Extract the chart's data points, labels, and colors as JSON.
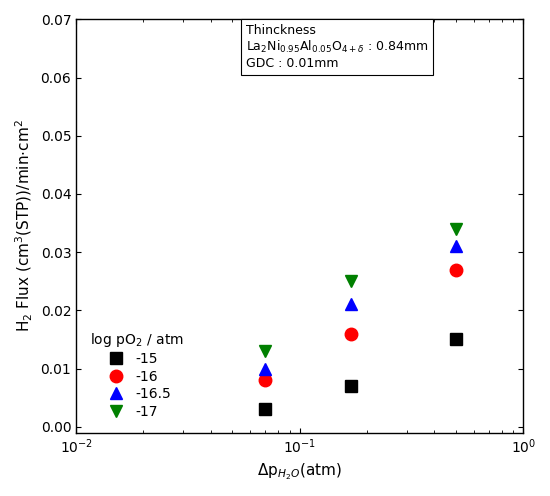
{
  "series": [
    {
      "label": "-15",
      "color": "black",
      "marker": "s",
      "x": [
        0.07,
        0.17,
        0.5
      ],
      "y": [
        0.003,
        0.007,
        0.015
      ]
    },
    {
      "label": "-16",
      "color": "red",
      "marker": "o",
      "x": [
        0.07,
        0.17,
        0.5
      ],
      "y": [
        0.008,
        0.016,
        0.027
      ]
    },
    {
      "label": "-16.5",
      "color": "blue",
      "marker": "^",
      "x": [
        0.07,
        0.17,
        0.5
      ],
      "y": [
        0.01,
        0.021,
        0.031
      ]
    },
    {
      "label": "-17",
      "color": "green",
      "marker": "v",
      "x": [
        0.07,
        0.17,
        0.5
      ],
      "y": [
        0.013,
        0.025,
        0.034
      ]
    }
  ],
  "xlim": [
    0.01,
    1.0
  ],
  "ylim": [
    -0.001,
    0.07
  ],
  "yticks": [
    0.0,
    0.01,
    0.02,
    0.03,
    0.04,
    0.05,
    0.06,
    0.07
  ],
  "xlabel": "$\\Delta$p$_{H_2O}$(atm)",
  "ylabel": "H$_2$ Flux (cm$^3$(STP))/min$\\cdot$cm$^2$",
  "legend_title": "log pO$_2$ / atm",
  "annotation_title": "Thinckness",
  "annotation_line1": "La$_2$Ni$_{0.95}$Al$_{0.05}$O$_{4+\\delta}$ : 0.84mm",
  "annotation_line2": "GDC : 0.01mm",
  "marker_size": 9,
  "background_color": "#ffffff",
  "fig_width": 5.5,
  "fig_height": 4.96
}
